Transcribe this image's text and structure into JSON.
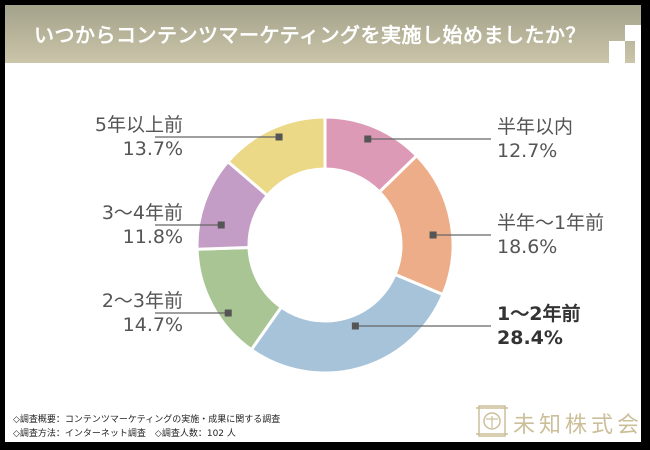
{
  "header": {
    "title": "いつからコンテンツマーケティングを実施し始めましたか？"
  },
  "chart_data": {
    "type": "pie",
    "subtype": "donut",
    "title": "いつからコンテンツマーケティングを実施し始めましたか？",
    "start_angle_note": "clockwise from top",
    "slices": [
      {
        "label": "半年以内",
        "value": 12.7,
        "display": "12.7%",
        "color": "#dc9ab6",
        "side": "right",
        "bold": false
      },
      {
        "label": "半年〜1年前",
        "value": 18.6,
        "display": "18.6%",
        "color": "#ecad88",
        "side": "right",
        "bold": false
      },
      {
        "label": "1〜2年前",
        "value": 28.4,
        "display": "28.4%",
        "color": "#a6c3da",
        "side": "right",
        "bold": true
      },
      {
        "label": "2〜3年前",
        "value": 14.7,
        "display": "14.7%",
        "color": "#a8c593",
        "side": "left",
        "bold": false
      },
      {
        "label": "3〜4年前",
        "value": 11.8,
        "display": "11.8%",
        "color": "#c49dc7",
        "side": "left",
        "bold": false
      },
      {
        "label": "5年以上前",
        "value": 13.7,
        "display": "13.7%",
        "color": "#ecd987",
        "side": "left",
        "bold": false
      }
    ]
  },
  "footer": {
    "line1": "◇調査概要：コンテンツマーケティングの実施・成果に関する調査",
    "line2": "◇調査方法：インターネット調査　◇調査人数：102 人"
  },
  "logo": {
    "icon": "company-seal-icon",
    "text": "未知株式会社"
  }
}
